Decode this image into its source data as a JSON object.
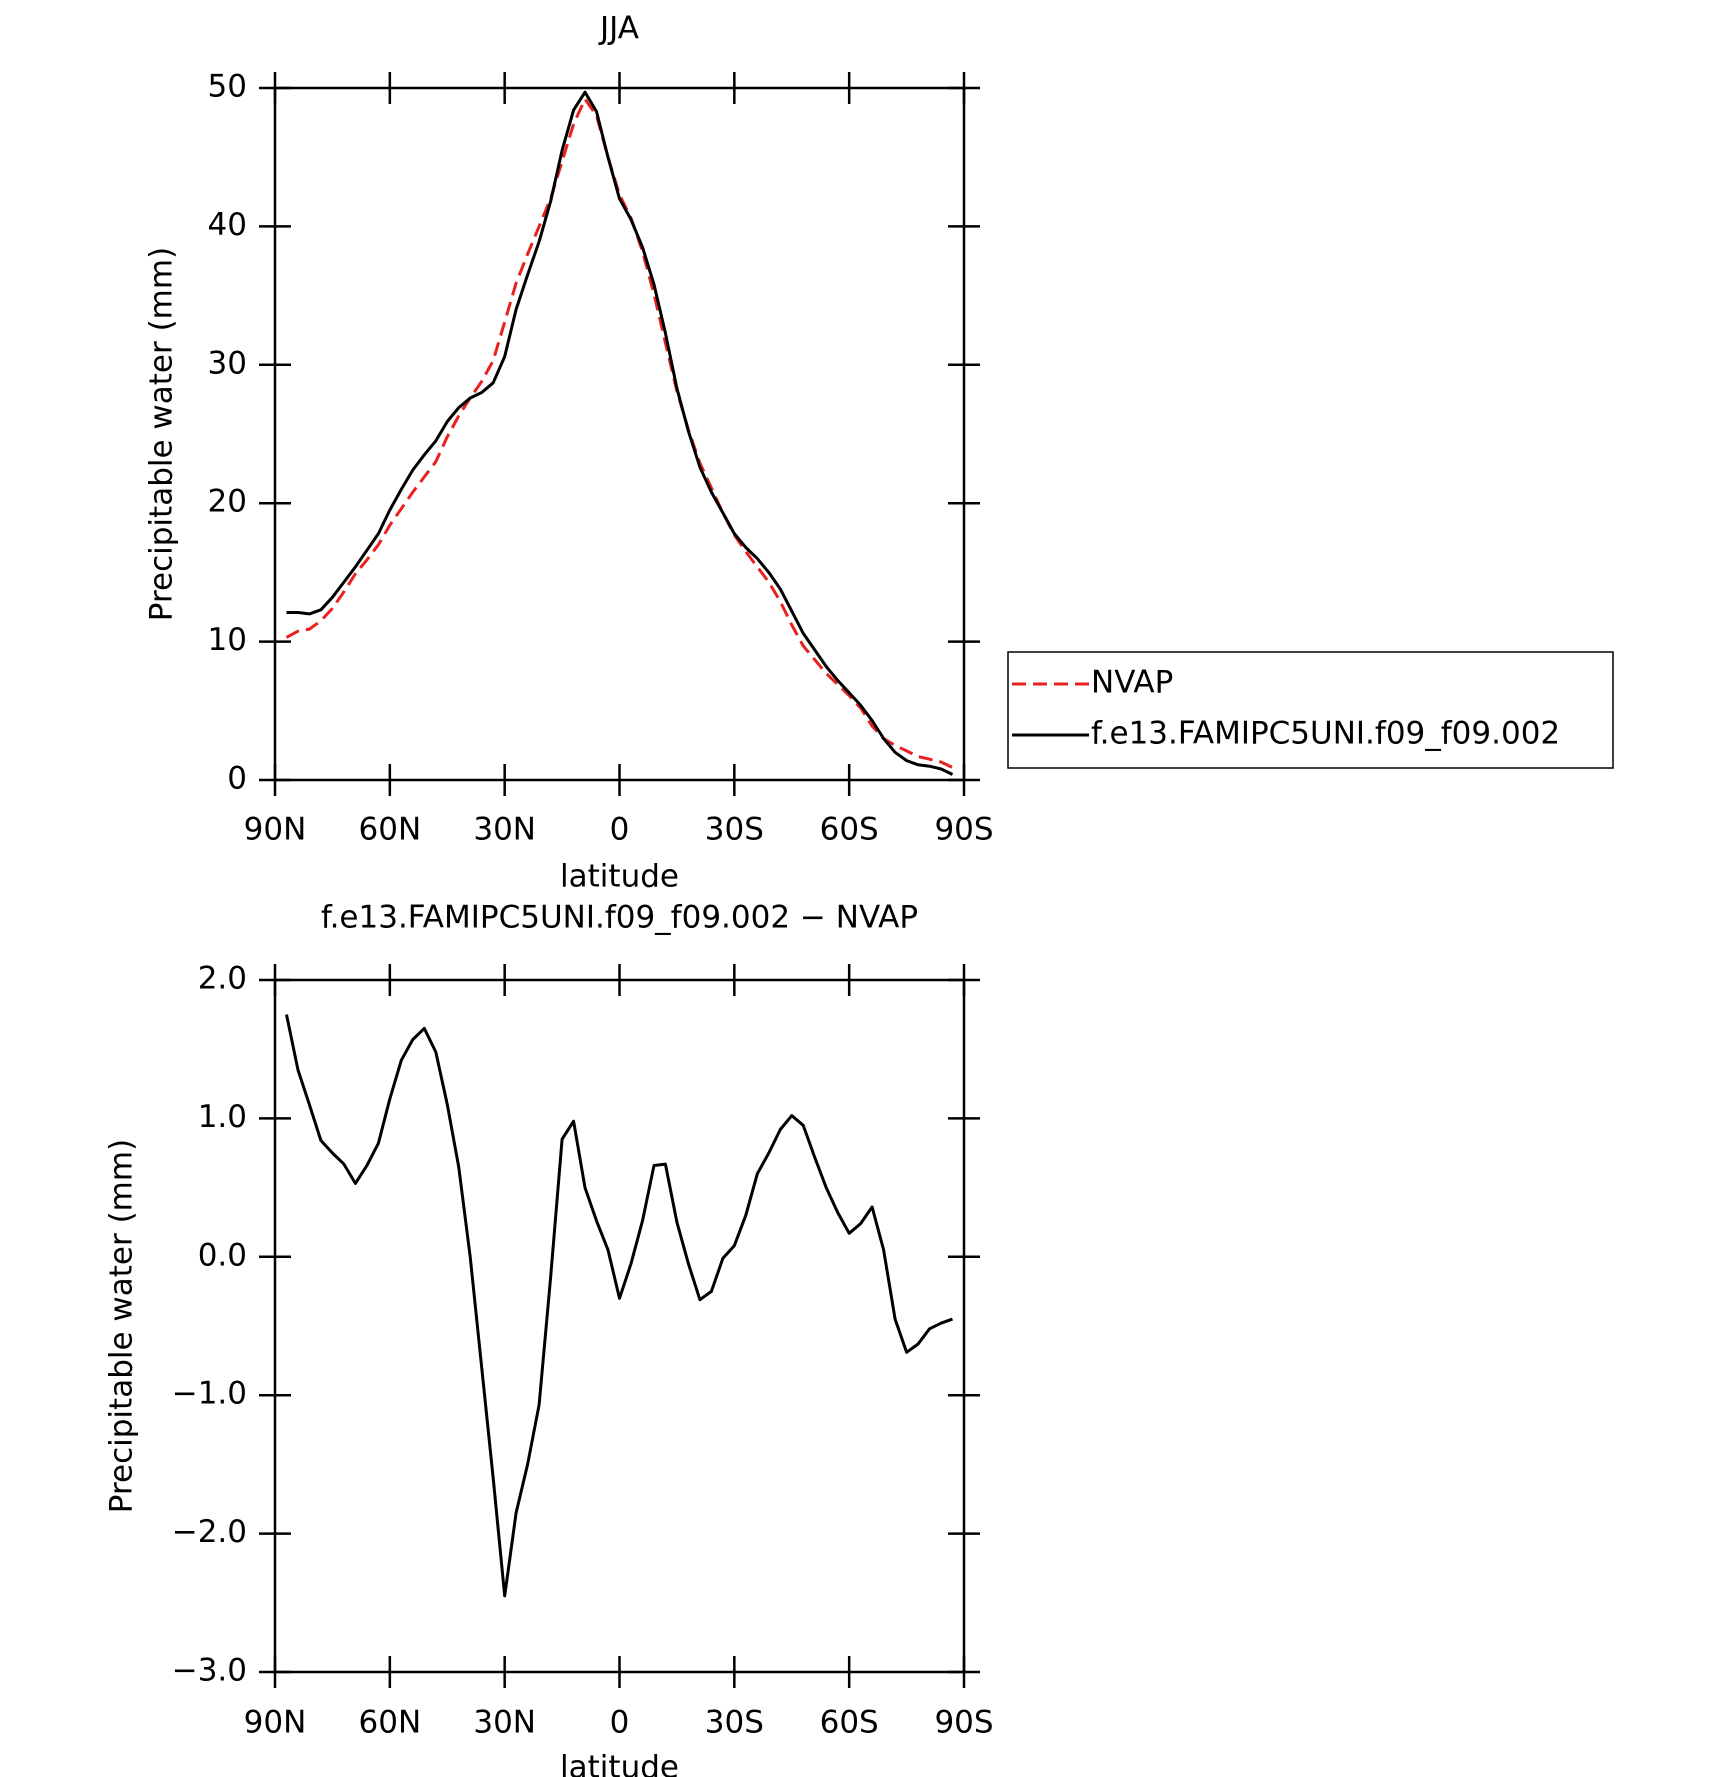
{
  "chart_data": [
    {
      "type": "line",
      "title": "JJA",
      "x_label": "latitude",
      "y_label": "Precipitable water (mm)",
      "x": [
        87,
        84,
        81,
        78,
        75,
        72,
        69,
        66,
        63,
        60,
        57,
        54,
        51,
        48,
        45,
        42,
        39,
        36,
        33,
        30,
        27,
        24,
        21,
        18,
        15,
        12,
        9,
        6,
        3,
        0,
        -3,
        -6,
        -9,
        -12,
        -15,
        -18,
        -21,
        -24,
        -27,
        -30,
        -33,
        -36,
        -39,
        -42,
        -45,
        -48,
        -51,
        -54,
        -57,
        -60,
        -63,
        -66,
        -69,
        -72,
        -75,
        -78,
        -81,
        -84,
        -87
      ],
      "series": [
        {
          "name": "NVAP",
          "color": "#e8211e",
          "dashed": true,
          "values": [
            10.3,
            10.75,
            10.9,
            11.5,
            12.4,
            13.6,
            14.9,
            15.9,
            17.0,
            18.4,
            19.6,
            20.8,
            21.9,
            23.0,
            24.8,
            26.3,
            27.6,
            28.8,
            30.3,
            33.1,
            35.9,
            38.0,
            40.0,
            42.0,
            44.7,
            47.4,
            49.2,
            48.0,
            45.0,
            42.3,
            40.6,
            38.2,
            35.1,
            31.6,
            28.1,
            25.3,
            22.9,
            21.1,
            19.3,
            17.7,
            16.5,
            15.4,
            14.3,
            12.9,
            11.2,
            9.7,
            8.7,
            7.7,
            6.9,
            6.1,
            5.2,
            3.9,
            3.0,
            2.5,
            2.1,
            1.7,
            1.5,
            1.3,
            0.9
          ]
        },
        {
          "name": "f.e13.FAMIPC5UNI.f09_f09.002",
          "color": "#000000",
          "dashed": false,
          "values": [
            12.1,
            12.1,
            12.0,
            12.3,
            13.2,
            14.3,
            15.4,
            16.6,
            17.8,
            19.5,
            21.0,
            22.4,
            23.5,
            24.5,
            25.9,
            26.9,
            27.6,
            28.0,
            28.7,
            30.6,
            34.0,
            36.5,
            38.9,
            41.8,
            45.5,
            48.4,
            49.7,
            48.3,
            45.0,
            42.0,
            40.5,
            38.5,
            35.8,
            32.3,
            28.3,
            25.2,
            22.6,
            20.8,
            19.3,
            17.8,
            16.8,
            16.0,
            15.0,
            13.8,
            12.2,
            10.6,
            9.4,
            8.2,
            7.2,
            6.3,
            5.4,
            4.3,
            3.0,
            2.0,
            1.4,
            1.1,
            1.0,
            0.8,
            0.4
          ]
        }
      ],
      "xlim": [
        90,
        -90
      ],
      "xticks": [
        {
          "value": 90,
          "label": "90N"
        },
        {
          "value": 60,
          "label": "60N"
        },
        {
          "value": 30,
          "label": "30N"
        },
        0,
        {
          "value": -30,
          "label": "30S"
        },
        {
          "value": -60,
          "label": "60S"
        },
        {
          "value": -90,
          "label": "90S"
        }
      ],
      "ylim": [
        0,
        50
      ],
      "yticks": [
        0,
        10,
        20,
        30,
        40,
        50
      ],
      "legend": "right"
    },
    {
      "type": "line",
      "title": "f.e13.FAMIPC5UNI.f09_f09.002 − NVAP",
      "x_label": "latitude",
      "y_label": "Precipitable water (mm)",
      "x": [
        87,
        84,
        81,
        78,
        75,
        72,
        69,
        66,
        63,
        60,
        57,
        54,
        51,
        48,
        45,
        42,
        39,
        36,
        33,
        30,
        27,
        24,
        21,
        18,
        15,
        12,
        9,
        6,
        3,
        0,
        -3,
        -6,
        -9,
        -12,
        -15,
        -18,
        -21,
        -24,
        -27,
        -30,
        -33,
        -36,
        -39,
        -42,
        -45,
        -48,
        -51,
        -54,
        -57,
        -60,
        -63,
        -66,
        -69,
        -72,
        -75,
        -78,
        -81,
        -84,
        -87
      ],
      "color": "#000000",
      "values": [
        1.75,
        1.35,
        1.1,
        0.84,
        0.75,
        0.67,
        0.53,
        0.66,
        0.82,
        1.14,
        1.42,
        1.57,
        1.65,
        1.48,
        1.1,
        0.65,
        0.0,
        -0.8,
        -1.6,
        -2.45,
        -1.85,
        -1.5,
        -1.07,
        -0.15,
        0.85,
        0.98,
        0.5,
        0.26,
        0.05,
        -0.3,
        -0.05,
        0.26,
        0.66,
        0.67,
        0.25,
        -0.05,
        -0.31,
        -0.25,
        -0.01,
        0.08,
        0.3,
        0.6,
        0.75,
        0.92,
        1.02,
        0.95,
        0.72,
        0.5,
        0.32,
        0.17,
        0.24,
        0.36,
        0.05,
        -0.45,
        -0.69,
        -0.63,
        -0.52,
        -0.48,
        -0.45
      ],
      "xlim": [
        90,
        -90
      ],
      "xticks": [
        {
          "value": 90,
          "label": "90N"
        },
        {
          "value": 60,
          "label": "60N"
        },
        {
          "value": 30,
          "label": "30N"
        },
        0,
        {
          "value": -30,
          "label": "30S"
        },
        {
          "value": -60,
          "label": "60S"
        },
        {
          "value": -90,
          "label": "90S"
        }
      ],
      "ylim": [
        -3,
        2
      ],
      "yticks": [
        {
          "value": -3,
          "label": "−3.0"
        },
        {
          "value": -2,
          "label": "−2.0"
        },
        {
          "value": -1,
          "label": "−1.0"
        },
        {
          "value": 0,
          "label": "0.0"
        },
        {
          "value": 1,
          "label": "1.0"
        },
        {
          "value": 2,
          "label": "2.0"
        }
      ]
    }
  ]
}
